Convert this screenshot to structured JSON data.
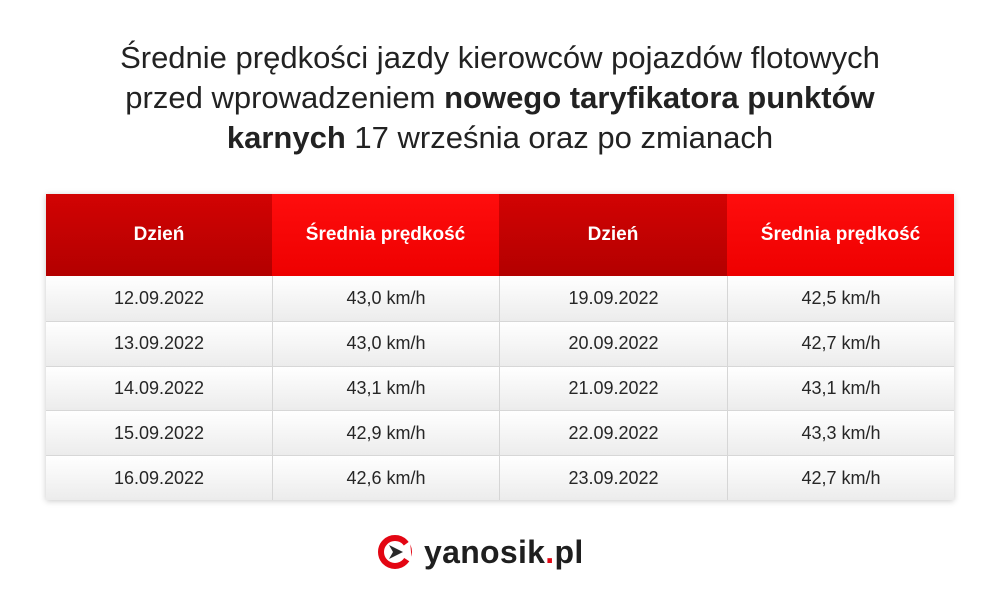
{
  "title": {
    "part1": "Średnie prędkości jazdy kierowców pojazdów flotowych",
    "part2": "przed wprowadzeniem",
    "bold": "nowego taryfikatora punktów",
    "bold2": "karnych",
    "part3": "17 września oraz po zmianach"
  },
  "table": {
    "headers": [
      "Dzień",
      "Średnia prędkość",
      "Dzień",
      "Średnia prędkość"
    ],
    "rows": [
      [
        "12.09.2022",
        "43,0 km/h",
        "19.09.2022",
        "42,5 km/h"
      ],
      [
        "13.09.2022",
        "43,0 km/h",
        "20.09.2022",
        "42,7 km/h"
      ],
      [
        "14.09.2022",
        "43,1 km/h",
        "21.09.2022",
        "43,1 km/h"
      ],
      [
        "15.09.2022",
        "42,9 km/h",
        "22.09.2022",
        "43,3 km/h"
      ],
      [
        "16.09.2022",
        "42,6 km/h",
        "23.09.2022",
        "42,7 km/h"
      ]
    ]
  },
  "logo": {
    "name": "yanosik",
    "dot": ".",
    "tld": "pl",
    "icon": "yanosik-logo-icon"
  },
  "colors": {
    "header_dark": "#c40000",
    "header_light": "#ff0000",
    "brand_red": "#e30613"
  }
}
